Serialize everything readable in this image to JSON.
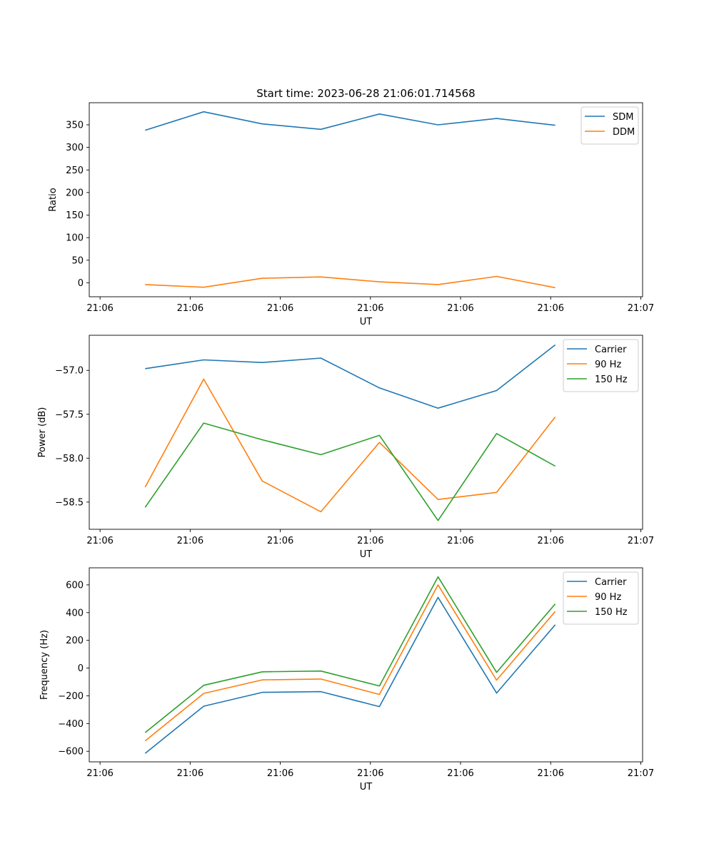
{
  "figure": {
    "title": "Start time: 2023-06-28 21:06:01.714568"
  },
  "chart_data": [
    {
      "type": "line",
      "title": "Start time: 2023-06-28 21:06:01.714568",
      "xlabel": "UT",
      "ylabel": "Ratio",
      "x_tick_labels": [
        "21:06",
        "21:06",
        "21:06",
        "21:06",
        "21:06",
        "21:06",
        "21:07"
      ],
      "x_tick_values": [
        0,
        1,
        2,
        3,
        4,
        5,
        6
      ],
      "x": [
        0.5,
        1.15,
        1.8,
        2.45,
        3.1,
        3.75,
        4.4,
        5.05
      ],
      "xlim": [
        -0.12,
        6.02
      ],
      "ylim": [
        -31,
        399
      ],
      "y_ticks": [
        0,
        50,
        100,
        150,
        200,
        250,
        300,
        350
      ],
      "legend_position": "top-right",
      "grid": false,
      "series": [
        {
          "name": "SDM",
          "color": "#1f77b4",
          "values": [
            338,
            379,
            352,
            340,
            374,
            350,
            364,
            349
          ]
        },
        {
          "name": "DDM",
          "color": "#ff7f0e",
          "values": [
            -4,
            -10,
            10,
            13,
            2,
            -4,
            14,
            -11
          ]
        }
      ]
    },
    {
      "type": "line",
      "xlabel": "UT",
      "ylabel": "Power (dB)",
      "x_tick_labels": [
        "21:06",
        "21:06",
        "21:06",
        "21:06",
        "21:06",
        "21:06",
        "21:07"
      ],
      "x_tick_values": [
        0,
        1,
        2,
        3,
        4,
        5,
        6
      ],
      "x": [
        0.5,
        1.15,
        1.8,
        2.45,
        3.1,
        3.75,
        4.4,
        5.05
      ],
      "xlim": [
        -0.12,
        6.02
      ],
      "ylim": [
        -58.81,
        -56.6
      ],
      "y_ticks": [
        -58.5,
        -58.0,
        -57.5,
        -57.0
      ],
      "y_tick_labels": [
        "−58.5",
        "−58.0",
        "−57.5",
        "−57.0"
      ],
      "legend_position": "top-right",
      "grid": false,
      "series": [
        {
          "name": "Carrier",
          "color": "#1f77b4",
          "values": [
            -56.98,
            -56.88,
            -56.91,
            -56.86,
            -57.2,
            -57.43,
            -57.23,
            -56.71
          ]
        },
        {
          "name": "90 Hz",
          "color": "#ff7f0e",
          "values": [
            -58.33,
            -57.1,
            -58.26,
            -58.61,
            -57.82,
            -58.47,
            -58.39,
            -57.53
          ]
        },
        {
          "name": "150 Hz",
          "color": "#2ca02c",
          "values": [
            -58.56,
            -57.6,
            -57.79,
            -57.96,
            -57.74,
            -58.71,
            -57.72,
            -58.09
          ]
        }
      ]
    },
    {
      "type": "line",
      "xlabel": "UT",
      "ylabel": "Frequency (Hz)",
      "x_tick_labels": [
        "21:06",
        "21:06",
        "21:06",
        "21:06",
        "21:06",
        "21:06",
        "21:07"
      ],
      "x_tick_values": [
        0,
        1,
        2,
        3,
        4,
        5,
        6
      ],
      "x": [
        0.5,
        1.15,
        1.8,
        2.45,
        3.1,
        3.75,
        4.4,
        5.05
      ],
      "xlim": [
        -0.12,
        6.02
      ],
      "ylim": [
        -676,
        723
      ],
      "y_ticks": [
        -600,
        -400,
        -200,
        0,
        200,
        400,
        600
      ],
      "y_tick_labels": [
        "−600",
        "−400",
        "−200",
        "0",
        "200",
        "400",
        "600"
      ],
      "legend_position": "top-right",
      "grid": false,
      "series": [
        {
          "name": "Carrier",
          "color": "#1f77b4",
          "values": [
            -615,
            -275,
            -175,
            -170,
            -278,
            510,
            -180,
            312
          ]
        },
        {
          "name": "90 Hz",
          "color": "#ff7f0e",
          "values": [
            -525,
            -183,
            -85,
            -79,
            -190,
            600,
            -87,
            408
          ]
        },
        {
          "name": "150 Hz",
          "color": "#2ca02c",
          "values": [
            -465,
            -124,
            -27,
            -21,
            -129,
            658,
            -31,
            463
          ]
        }
      ]
    }
  ]
}
